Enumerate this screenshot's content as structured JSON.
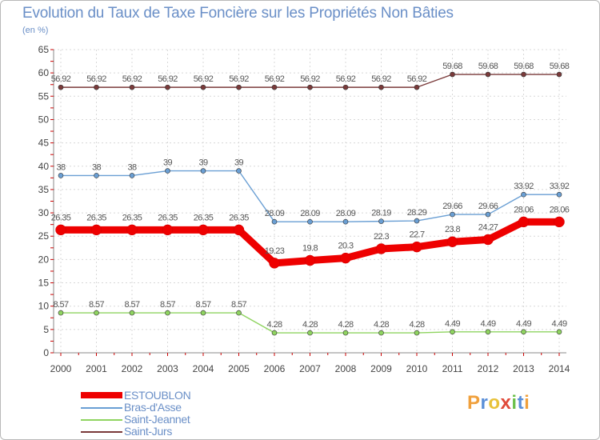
{
  "header": {
    "title": "Evolution du Taux de Taxe Foncière sur les Propriétés Non Bâties",
    "unit": "(en %)"
  },
  "logo": {
    "letters": [
      "P",
      "r",
      "o",
      "x",
      "i",
      "t",
      "i"
    ],
    "colors": [
      "#f0a03c",
      "#5a8fd8",
      "#e8c23a",
      "#e04a3a",
      "#6cc04a",
      "#5a8fd8",
      "#f0a03c"
    ]
  },
  "chart_data": {
    "type": "line",
    "title": "Evolution du Taux de Taxe Foncière sur les Propriétés Non Bâties",
    "ylabel": "(en %)",
    "xlabel": "",
    "x": [
      "2000",
      "2001",
      "2002",
      "2003",
      "2004",
      "2005",
      "2006",
      "2007",
      "2008",
      "2009",
      "2010",
      "2011",
      "2012",
      "2013",
      "2014"
    ],
    "ylim": [
      0,
      65
    ],
    "yticks": [
      0,
      5,
      10,
      15,
      20,
      25,
      30,
      35,
      40,
      45,
      50,
      55,
      60,
      65
    ],
    "grid": true,
    "legend_position": "bottom-left",
    "series": [
      {
        "name": "ESTOUBLON",
        "color": "#ee0000",
        "highlight": true,
        "values": [
          26.35,
          26.35,
          26.35,
          26.35,
          26.35,
          26.35,
          19.23,
          19.8,
          20.3,
          22.3,
          22.7,
          23.8,
          24.27,
          28.06,
          28.06
        ],
        "labels": [
          "26.35",
          "26.35",
          "26.35",
          "26.35",
          "26.35",
          "26.35",
          "19.23",
          "19.8",
          "20.3",
          "22.3",
          "22.7",
          "23.8",
          "24.27",
          "28.06",
          "28.06"
        ]
      },
      {
        "name": "Bras-d'Asse",
        "color": "#6a9fd4",
        "highlight": false,
        "values": [
          38,
          38,
          38,
          39,
          39,
          39,
          28.09,
          28.09,
          28.09,
          28.19,
          28.29,
          29.66,
          29.66,
          33.92,
          33.92
        ],
        "labels": [
          "38",
          "38",
          "38",
          "39",
          "39",
          "39",
          "28.09",
          "28.09",
          "28.09",
          "28.19",
          "28.29",
          "29.66",
          "29.66",
          "33.92",
          "33.92"
        ]
      },
      {
        "name": "Saint-Jeannet",
        "color": "#8fd460",
        "highlight": false,
        "values": [
          8.57,
          8.57,
          8.57,
          8.57,
          8.57,
          8.57,
          4.28,
          4.28,
          4.28,
          4.28,
          4.28,
          4.49,
          4.49,
          4.49,
          4.49
        ],
        "labels": [
          "8.57",
          "8.57",
          "8.57",
          "8.57",
          "8.57",
          "8.57",
          "4.28",
          "4.28",
          "4.28",
          "4.28",
          "4.28",
          "4.49",
          "4.49",
          "4.49",
          "4.49"
        ]
      },
      {
        "name": "Saint-Jurs",
        "color": "#7a3a3a",
        "highlight": false,
        "values": [
          56.92,
          56.92,
          56.92,
          56.92,
          56.92,
          56.92,
          56.92,
          56.92,
          56.92,
          56.92,
          56.92,
          59.68,
          59.68,
          59.68,
          59.68
        ],
        "labels": [
          "56.92",
          "56.92",
          "56.92",
          "56.92",
          "56.92",
          "56.92",
          "56.92",
          "56.92",
          "56.92",
          "56.92",
          "56.92",
          "59.68",
          "59.68",
          "59.68",
          "59.68"
        ]
      }
    ]
  }
}
